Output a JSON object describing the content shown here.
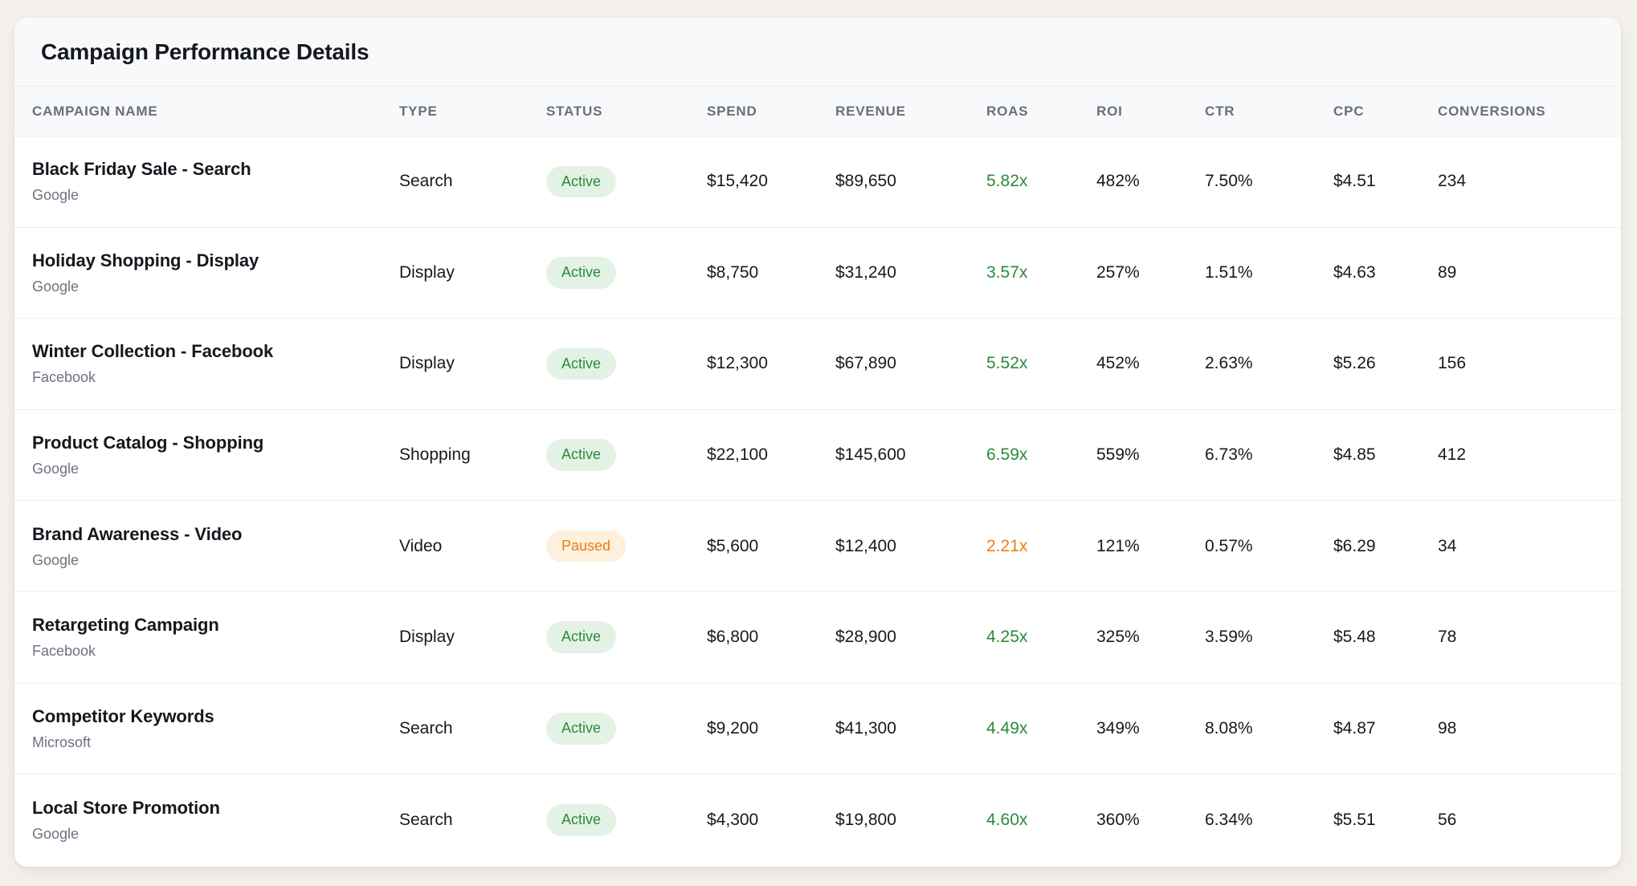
{
  "colors": {
    "page_bg": "#f4f1ec",
    "card_bg": "#ffffff",
    "section_bg": "#f8f9fa",
    "divider": "#e9ebee",
    "row_divider": "#efefef",
    "title_text": "#15181e",
    "header_text": "#696f7a",
    "value_text": "#16191f",
    "muted_text": "#6b7280",
    "green_text": "#2b8a3b",
    "green_bg": "#e4f2e6",
    "orange_text": "#ef7d11",
    "orange_bg": "#fdf0dd"
  },
  "card": {
    "title": "Campaign Performance Details"
  },
  "table": {
    "columns": [
      {
        "key": "name",
        "label": "CAMPAIGN NAME"
      },
      {
        "key": "type",
        "label": "TYPE"
      },
      {
        "key": "status",
        "label": "STATUS"
      },
      {
        "key": "spend",
        "label": "SPEND"
      },
      {
        "key": "revenue",
        "label": "REVENUE"
      },
      {
        "key": "roas",
        "label": "ROAS"
      },
      {
        "key": "roi",
        "label": "ROI"
      },
      {
        "key": "ctr",
        "label": "CTR"
      },
      {
        "key": "cpc",
        "label": "CPC"
      },
      {
        "key": "conversions",
        "label": "CONVERSIONS"
      }
    ],
    "rows": [
      {
        "name": "Black Friday Sale - Search",
        "platform": "Google",
        "type": "Search",
        "status": {
          "label": "Active",
          "variant": "active"
        },
        "spend": "$15,420",
        "revenue": "$89,650",
        "roas": {
          "value": "5.82x",
          "variant": "good"
        },
        "roi": "482%",
        "ctr": "7.50%",
        "cpc": "$4.51",
        "conversions": "234"
      },
      {
        "name": "Holiday Shopping - Display",
        "platform": "Google",
        "type": "Display",
        "status": {
          "label": "Active",
          "variant": "active"
        },
        "spend": "$8,750",
        "revenue": "$31,240",
        "roas": {
          "value": "3.57x",
          "variant": "good"
        },
        "roi": "257%",
        "ctr": "1.51%",
        "cpc": "$4.63",
        "conversions": "89"
      },
      {
        "name": "Winter Collection - Facebook",
        "platform": "Facebook",
        "type": "Display",
        "status": {
          "label": "Active",
          "variant": "active"
        },
        "spend": "$12,300",
        "revenue": "$67,890",
        "roas": {
          "value": "5.52x",
          "variant": "good"
        },
        "roi": "452%",
        "ctr": "2.63%",
        "cpc": "$5.26",
        "conversions": "156"
      },
      {
        "name": "Product Catalog - Shopping",
        "platform": "Google",
        "type": "Shopping",
        "status": {
          "label": "Active",
          "variant": "active"
        },
        "spend": "$22,100",
        "revenue": "$145,600",
        "roas": {
          "value": "6.59x",
          "variant": "good"
        },
        "roi": "559%",
        "ctr": "6.73%",
        "cpc": "$4.85",
        "conversions": "412"
      },
      {
        "name": "Brand Awareness - Video",
        "platform": "Google",
        "type": "Video",
        "status": {
          "label": "Paused",
          "variant": "paused"
        },
        "spend": "$5,600",
        "revenue": "$12,400",
        "roas": {
          "value": "2.21x",
          "variant": "warn"
        },
        "roi": "121%",
        "ctr": "0.57%",
        "cpc": "$6.29",
        "conversions": "34"
      },
      {
        "name": "Retargeting Campaign",
        "platform": "Facebook",
        "type": "Display",
        "status": {
          "label": "Active",
          "variant": "active"
        },
        "spend": "$6,800",
        "revenue": "$28,900",
        "roas": {
          "value": "4.25x",
          "variant": "good"
        },
        "roi": "325%",
        "ctr": "3.59%",
        "cpc": "$5.48",
        "conversions": "78"
      },
      {
        "name": "Competitor Keywords",
        "platform": "Microsoft",
        "type": "Search",
        "status": {
          "label": "Active",
          "variant": "active"
        },
        "spend": "$9,200",
        "revenue": "$41,300",
        "roas": {
          "value": "4.49x",
          "variant": "good"
        },
        "roi": "349%",
        "ctr": "8.08%",
        "cpc": "$4.87",
        "conversions": "98"
      },
      {
        "name": "Local Store Promotion",
        "platform": "Google",
        "type": "Search",
        "status": {
          "label": "Active",
          "variant": "active"
        },
        "spend": "$4,300",
        "revenue": "$19,800",
        "roas": {
          "value": "4.60x",
          "variant": "good"
        },
        "roi": "360%",
        "ctr": "6.34%",
        "cpc": "$5.51",
        "conversions": "56"
      }
    ]
  }
}
